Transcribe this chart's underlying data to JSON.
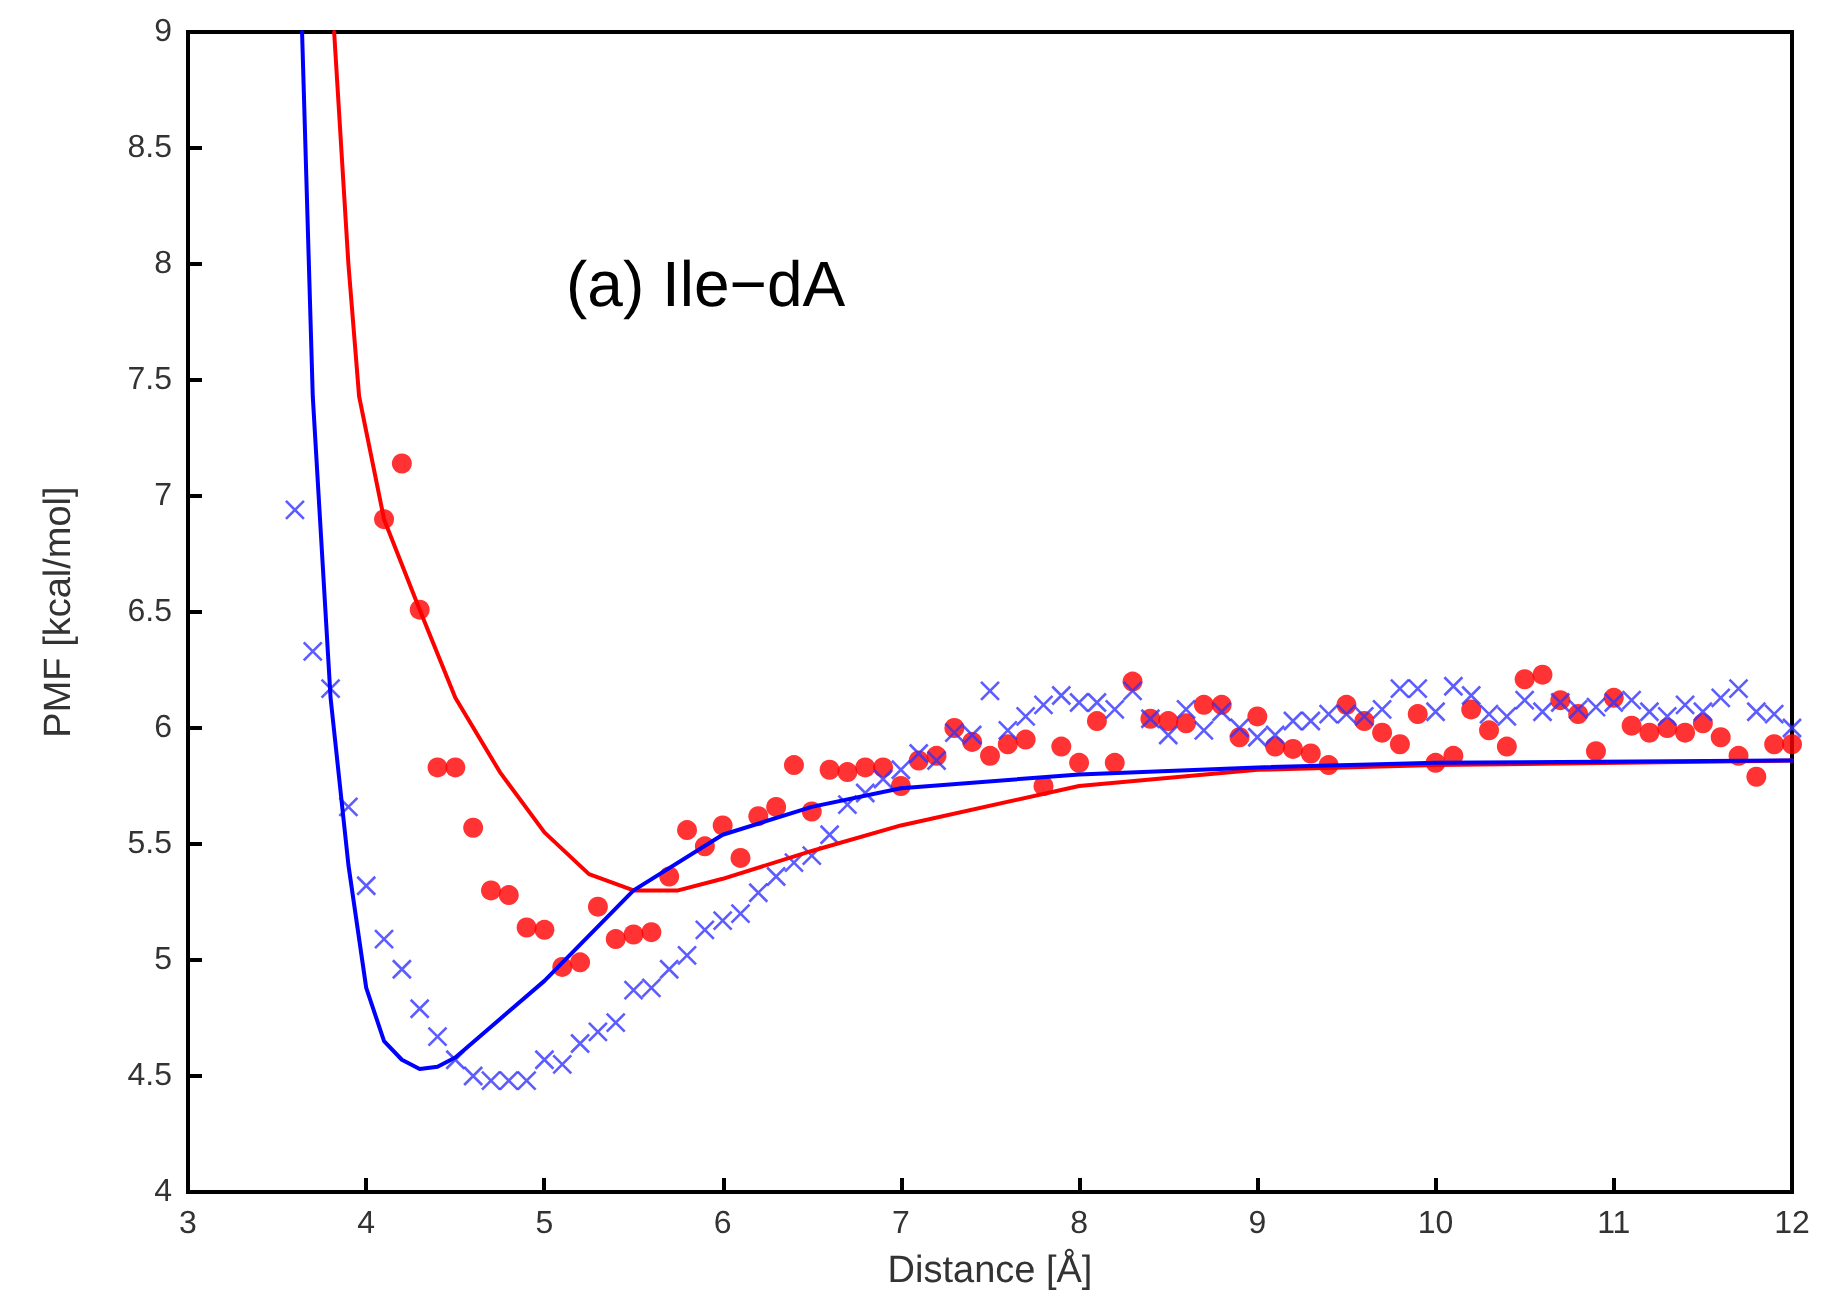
{
  "chart_data": {
    "type": "scatter",
    "xlabel": "Distance [Å]",
    "ylabel": "PMF [kcal/mol]",
    "annotations": [
      "(a) Ile−dA"
    ],
    "xlim": [
      3,
      12
    ],
    "xticks": [
      3,
      4,
      5,
      6,
      7,
      8,
      9,
      10,
      11,
      12
    ],
    "ylim": [
      4,
      9
    ],
    "yticks": [
      4,
      4.5,
      5,
      5.5,
      6,
      6.5,
      7,
      7.5,
      8,
      8.5,
      9
    ],
    "grid": false,
    "series": [
      {
        "type": "scatter",
        "marker": "circle",
        "color": "#ff0000",
        "x": [
          4.1,
          4.2,
          4.3,
          4.4,
          4.5,
          4.6,
          4.7,
          4.8,
          4.9,
          5.0,
          5.1,
          5.2,
          5.3,
          5.4,
          5.5,
          5.6,
          5.7,
          5.8,
          5.9,
          6.0,
          6.1,
          6.2,
          6.3,
          6.4,
          6.5,
          6.6,
          6.7,
          6.8,
          6.9,
          7.0,
          7.1,
          7.2,
          7.3,
          7.4,
          7.5,
          7.6,
          7.7,
          7.8,
          7.9,
          8.0,
          8.1,
          8.2,
          8.3,
          8.4,
          8.5,
          8.6,
          8.7,
          8.8,
          8.9,
          9.0,
          9.1,
          9.2,
          9.3,
          9.4,
          9.5,
          9.6,
          9.7,
          9.8,
          9.9,
          10.0,
          10.1,
          10.2,
          10.3,
          10.4,
          10.5,
          10.6,
          10.7,
          10.8,
          10.9,
          11.0,
          11.1,
          11.2,
          11.3,
          11.4,
          11.5,
          11.6,
          11.7,
          11.8,
          11.9,
          12.0
        ],
        "values": [
          6.9,
          7.14,
          6.51,
          5.83,
          5.83,
          5.57,
          5.3,
          5.28,
          5.14,
          5.13,
          4.97,
          4.99,
          5.23,
          5.09,
          5.11,
          5.12,
          5.36,
          5.56,
          5.49,
          5.58,
          5.44,
          5.62,
          5.66,
          5.84,
          5.64,
          5.82,
          5.81,
          5.83,
          5.83,
          5.75,
          5.86,
          5.88,
          6.0,
          5.94,
          5.88,
          5.93,
          5.95,
          5.75,
          5.92,
          5.85,
          6.03,
          5.85,
          6.2,
          6.04,
          6.03,
          6.02,
          6.1,
          6.1,
          5.96,
          6.05,
          5.92,
          5.91,
          5.89,
          5.84,
          6.1,
          6.03,
          5.98,
          5.93,
          6.06,
          5.85,
          5.88,
          6.08,
          5.99,
          5.92,
          6.21,
          6.23,
          6.12,
          6.06,
          5.9,
          6.13,
          6.01,
          5.98,
          6.0,
          5.98,
          6.02,
          5.96,
          5.88,
          5.79,
          5.93,
          5.93
        ]
      },
      {
        "type": "scatter",
        "marker": "cross",
        "color": "#3333ff",
        "x": [
          3.6,
          3.7,
          3.8,
          3.9,
          4.0,
          4.1,
          4.2,
          4.3,
          4.4,
          4.5,
          4.6,
          4.7,
          4.8,
          4.9,
          5.0,
          5.1,
          5.2,
          5.3,
          5.4,
          5.5,
          5.6,
          5.7,
          5.8,
          5.9,
          6.0,
          6.1,
          6.2,
          6.3,
          6.4,
          6.5,
          6.6,
          6.7,
          6.8,
          6.9,
          7.0,
          7.1,
          7.2,
          7.3,
          7.4,
          7.5,
          7.6,
          7.7,
          7.8,
          7.9,
          8.0,
          8.1,
          8.2,
          8.3,
          8.4,
          8.5,
          8.6,
          8.7,
          8.8,
          8.9,
          9.0,
          9.1,
          9.2,
          9.3,
          9.4,
          9.5,
          9.6,
          9.7,
          9.8,
          9.9,
          10.0,
          10.1,
          10.2,
          10.3,
          10.4,
          10.5,
          10.6,
          10.7,
          10.8,
          10.9,
          11.0,
          11.1,
          11.2,
          11.3,
          11.4,
          11.5,
          11.6,
          11.7,
          11.8,
          11.9,
          12.0
        ],
        "values": [
          6.94,
          6.33,
          6.17,
          5.66,
          5.32,
          5.09,
          4.96,
          4.79,
          4.67,
          4.57,
          4.5,
          4.48,
          4.48,
          4.48,
          4.57,
          4.55,
          4.64,
          4.69,
          4.73,
          4.87,
          4.88,
          4.96,
          5.02,
          5.13,
          5.17,
          5.2,
          5.29,
          5.36,
          5.42,
          5.45,
          5.54,
          5.67,
          5.72,
          5.78,
          5.82,
          5.89,
          5.86,
          5.98,
          5.97,
          6.16,
          5.99,
          6.05,
          6.1,
          6.14,
          6.11,
          6.11,
          6.08,
          6.16,
          6.04,
          5.97,
          6.08,
          5.99,
          6.07,
          6.0,
          5.96,
          5.97,
          6.03,
          6.03,
          6.06,
          6.06,
          6.05,
          6.08,
          6.17,
          6.17,
          6.07,
          6.18,
          6.14,
          6.06,
          6.05,
          6.12,
          6.07,
          6.11,
          6.08,
          6.09,
          6.11,
          6.12,
          6.07,
          6.05,
          6.1,
          6.07,
          6.13,
          6.17,
          6.07,
          6.06,
          6.0
        ]
      },
      {
        "type": "line",
        "marker": "none",
        "line_style": "solid",
        "color": "#ff0000",
        "x": [
          3.82,
          3.9,
          3.96,
          4.1,
          4.3,
          4.5,
          4.75,
          5.0,
          5.25,
          5.5,
          5.75,
          6.0,
          6.5,
          7.0,
          8.0,
          9.0,
          10.0,
          12.0
        ],
        "values": [
          9.0,
          8.0,
          7.43,
          6.9,
          6.51,
          6.13,
          5.81,
          5.55,
          5.37,
          5.3,
          5.3,
          5.35,
          5.47,
          5.58,
          5.75,
          5.82,
          5.84,
          5.86
        ]
      },
      {
        "type": "line",
        "marker": "none",
        "line_style": "solid",
        "color": "#0000ff",
        "x": [
          3.64,
          3.7,
          3.8,
          3.9,
          4.0,
          4.1,
          4.2,
          4.3,
          4.4,
          4.5,
          5.0,
          5.5,
          6.0,
          6.5,
          7.0,
          8.0,
          9.0,
          10.0,
          12.0
        ],
        "values": [
          9.0,
          7.43,
          6.13,
          5.41,
          4.88,
          4.65,
          4.57,
          4.53,
          4.54,
          4.58,
          4.91,
          5.3,
          5.54,
          5.66,
          5.74,
          5.8,
          5.83,
          5.85,
          5.86
        ]
      }
    ]
  }
}
